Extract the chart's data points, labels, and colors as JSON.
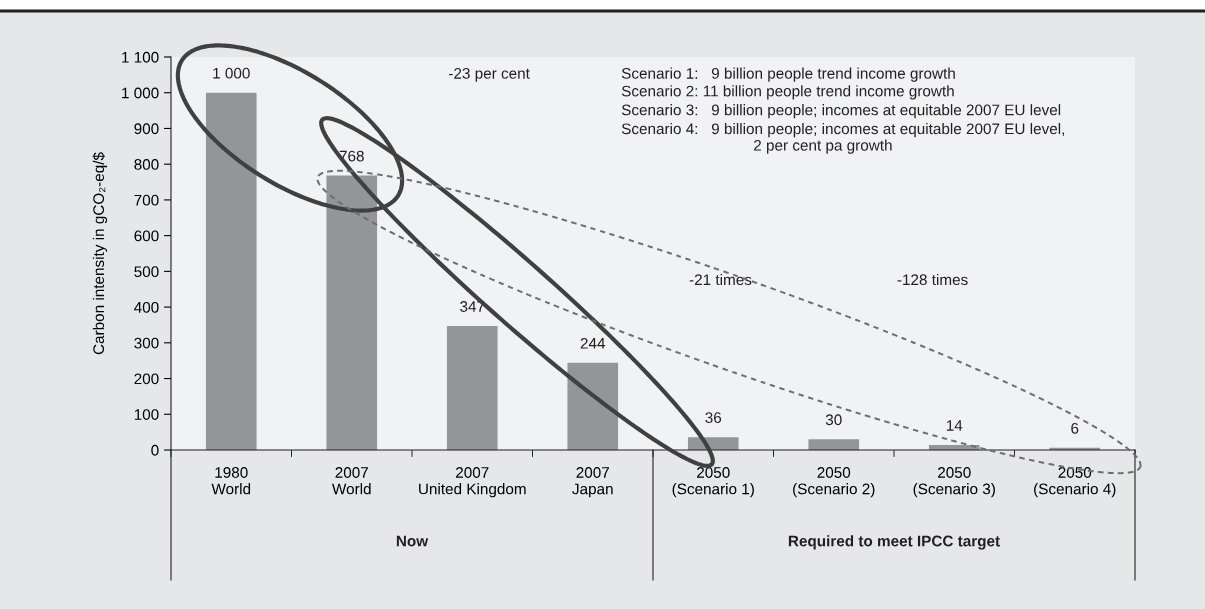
{
  "chart_data": {
    "type": "bar",
    "categories": [
      "1980\nWorld",
      "2007\nWorld",
      "2007\nUnited Kingdom",
      "2007\nJapan",
      "2050\n(Scenario 1)",
      "2050\n(Scenario 2)",
      "2050\n(Scenario 3)",
      "2050\n(Scenario 4)"
    ],
    "values": [
      1000,
      768,
      347,
      244,
      36,
      30,
      14,
      6
    ],
    "value_labels": [
      "1 000",
      "768",
      "347",
      "244",
      "36",
      "30",
      "14",
      "6"
    ],
    "color": "#939598",
    "ylabel": "Carbon intensity in gCO₂-eq/$",
    "ylim": [
      0,
      1100
    ],
    "yticks": [
      0,
      100,
      200,
      300,
      400,
      500,
      600,
      700,
      800,
      900,
      {
        "value": 1000,
        "label": "1 000"
      },
      {
        "value": 1100,
        "label": "1 100"
      }
    ],
    "grid": false,
    "annotations": [
      "-23 per cent",
      "-21 times",
      "-128 times",
      "Scenario 1:   9 billion people trend income growth",
      "Scenario 2: 11 billion people trend income growth",
      "Scenario 3:   9 billion people; incomes at equitable 2007 EU level",
      "Scenario 4:   9 billion people; incomes at equitable 2007 EU level,",
      "2 per cent pa growth",
      "Now",
      "Required to meet IPCC target"
    ]
  }
}
